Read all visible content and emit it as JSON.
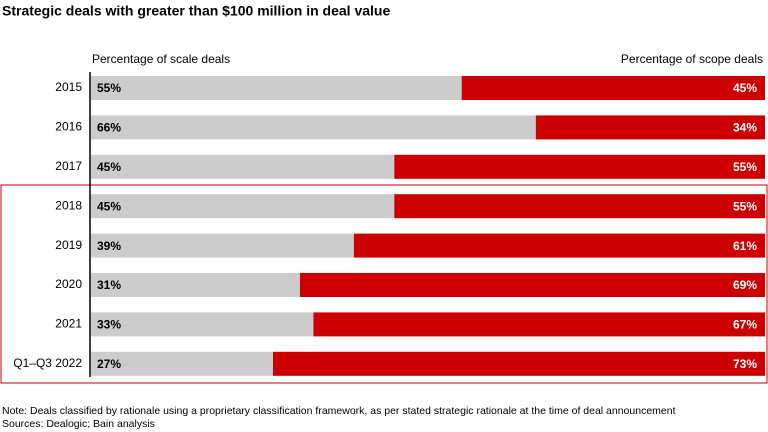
{
  "chart_data": {
    "type": "stacked-bar-horizontal",
    "title": "Strategic deals with greater than $100 million in deal value",
    "categories": [
      "2015",
      "2016",
      "2017",
      "2018",
      "2019",
      "2020",
      "2021",
      "Q1–Q3 2022"
    ],
    "series": [
      {
        "name": "Percentage of scale deals",
        "color": "#cccccc",
        "values": [
          55,
          66,
          45,
          45,
          39,
          31,
          33,
          27
        ],
        "value_labels": [
          "55%",
          "66%",
          "45%",
          "45%",
          "39%",
          "31%",
          "33%",
          "27%"
        ]
      },
      {
        "name": "Percentage of scope deals",
        "color": "#cc0000",
        "values": [
          45,
          34,
          55,
          55,
          61,
          69,
          67,
          73
        ],
        "value_labels": [
          "45%",
          "34%",
          "55%",
          "55%",
          "61%",
          "69%",
          "67%",
          "73%"
        ]
      }
    ],
    "xlim": [
      0,
      100
    ],
    "notes": [
      "Note: Deals classified by rationale using a proprietary classification framework, as per stated strategic rationale at the time of deal announcement",
      "Sources: Dealogic; Bain analysis"
    ]
  }
}
